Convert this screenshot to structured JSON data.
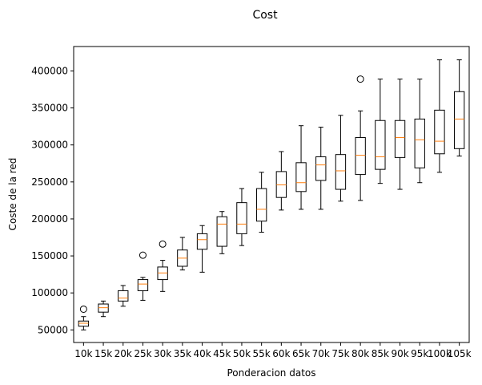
{
  "chart_data": {
    "type": "box",
    "title": "Cost",
    "xlabel": "Ponderacion datos",
    "ylabel": "Coste de la red",
    "ylim": [
      33000,
      433000
    ],
    "yticks": [
      50000,
      100000,
      150000,
      200000,
      250000,
      300000,
      350000,
      400000
    ],
    "grid": false,
    "categories": [
      "10k",
      "15k",
      "20k",
      "25k",
      "30k",
      "35k",
      "40k",
      "45k",
      "50k",
      "55k",
      "60k",
      "65k",
      "70k",
      "75k",
      "80k",
      "85k",
      "90k",
      "95k",
      "100k",
      "105k"
    ],
    "boxes": [
      {
        "whisker_low": 50000,
        "q1": 55000,
        "median": 59000,
        "q3": 62000,
        "whisker_high": 68000,
        "outliers": [
          78000
        ]
      },
      {
        "whisker_low": 68000,
        "q1": 74000,
        "median": 80000,
        "q3": 85000,
        "whisker_high": 89000,
        "outliers": []
      },
      {
        "whisker_low": 82000,
        "q1": 89000,
        "median": 93000,
        "q3": 103000,
        "whisker_high": 110000,
        "outliers": []
      },
      {
        "whisker_low": 90000,
        "q1": 103000,
        "median": 112000,
        "q3": 118000,
        "whisker_high": 121000,
        "outliers": [
          151000
        ]
      },
      {
        "whisker_low": 102000,
        "q1": 118000,
        "median": 127000,
        "q3": 135000,
        "whisker_high": 144000,
        "outliers": [
          166000
        ]
      },
      {
        "whisker_low": 131000,
        "q1": 136000,
        "median": 147000,
        "q3": 158000,
        "whisker_high": 175000,
        "outliers": []
      },
      {
        "whisker_low": 128000,
        "q1": 159000,
        "median": 172000,
        "q3": 180000,
        "whisker_high": 191000,
        "outliers": []
      },
      {
        "whisker_low": 153000,
        "q1": 163000,
        "median": 193000,
        "q3": 203000,
        "whisker_high": 210000,
        "outliers": []
      },
      {
        "whisker_low": 164000,
        "q1": 180000,
        "median": 193000,
        "q3": 222000,
        "whisker_high": 241000,
        "outliers": []
      },
      {
        "whisker_low": 182000,
        "q1": 197000,
        "median": 213000,
        "q3": 241000,
        "whisker_high": 263000,
        "outliers": []
      },
      {
        "whisker_low": 212000,
        "q1": 229000,
        "median": 246000,
        "q3": 264000,
        "whisker_high": 291000,
        "outliers": []
      },
      {
        "whisker_low": 213000,
        "q1": 237000,
        "median": 249000,
        "q3": 276000,
        "whisker_high": 326000,
        "outliers": []
      },
      {
        "whisker_low": 213000,
        "q1": 252000,
        "median": 273000,
        "q3": 284000,
        "whisker_high": 324000,
        "outliers": []
      },
      {
        "whisker_low": 224000,
        "q1": 240000,
        "median": 265000,
        "q3": 287000,
        "whisker_high": 340000,
        "outliers": []
      },
      {
        "whisker_low": 225000,
        "q1": 260000,
        "median": 286000,
        "q3": 310000,
        "whisker_high": 346000,
        "outliers": [
          389000
        ]
      },
      {
        "whisker_low": 248000,
        "q1": 267000,
        "median": 284000,
        "q3": 333000,
        "whisker_high": 389000,
        "outliers": []
      },
      {
        "whisker_low": 240000,
        "q1": 283000,
        "median": 310000,
        "q3": 333000,
        "whisker_high": 389000,
        "outliers": []
      },
      {
        "whisker_low": 249000,
        "q1": 269000,
        "median": 307000,
        "q3": 335000,
        "whisker_high": 389000,
        "outliers": []
      },
      {
        "whisker_low": 263000,
        "q1": 288000,
        "median": 305000,
        "q3": 347000,
        "whisker_high": 415000,
        "outliers": []
      },
      {
        "whisker_low": 285000,
        "q1": 295000,
        "median": 335000,
        "q3": 372000,
        "whisker_high": 415000,
        "outliers": []
      }
    ],
    "colors": {
      "box": "#000000",
      "median": "#ff7f0e",
      "outlier": "#000000"
    }
  }
}
